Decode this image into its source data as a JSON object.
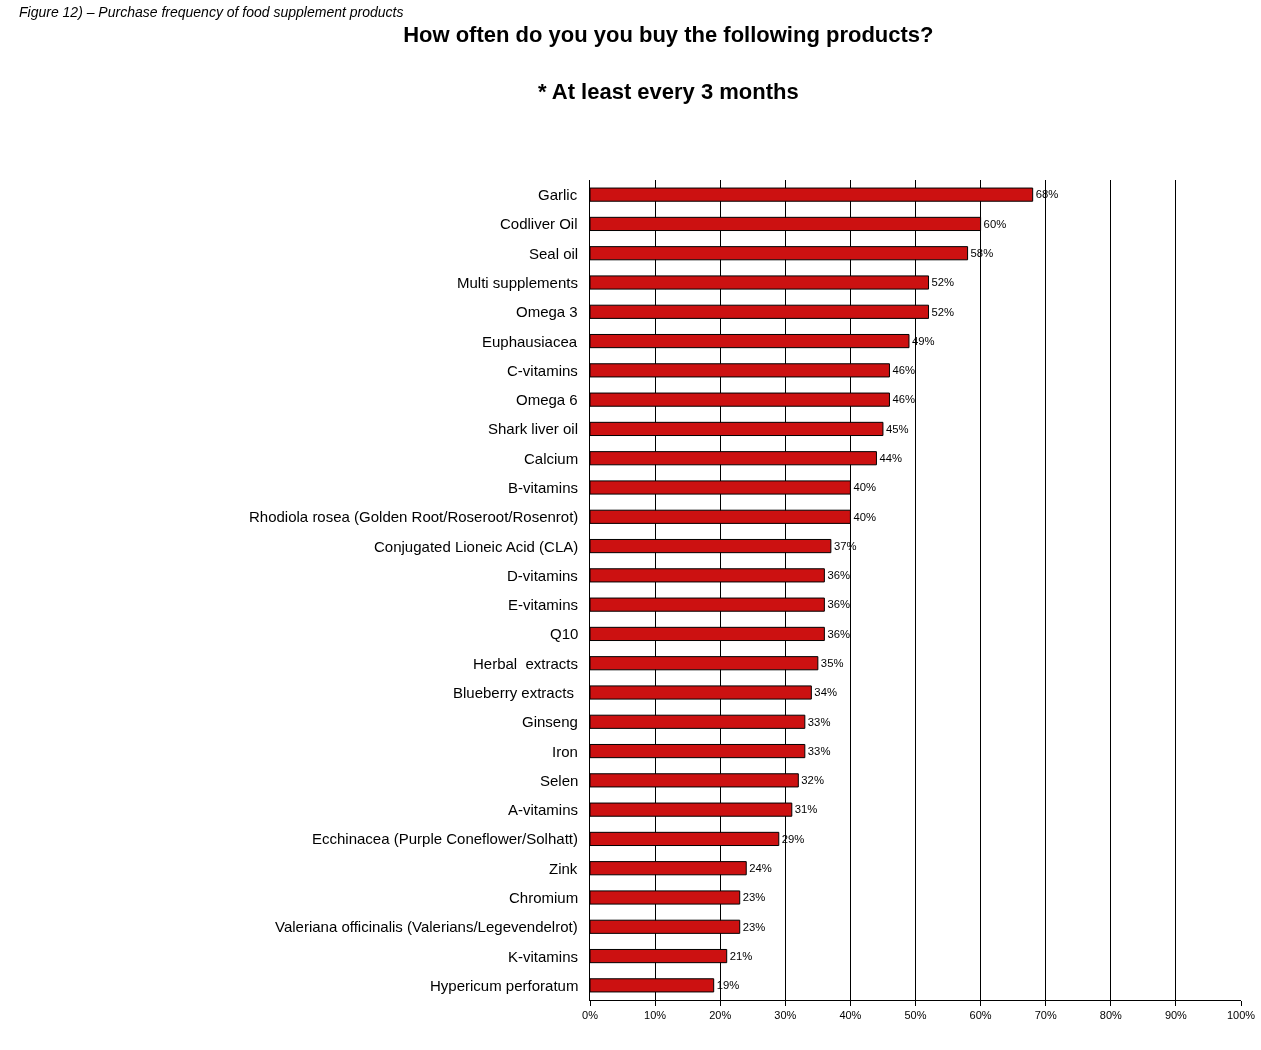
{
  "chart_data": {
    "type": "bar",
    "orientation": "horizontal",
    "title": "How often do you you buy the following products?",
    "subtitle": "* At least every 3 months",
    "annotations": [
      "Figure 12) – Purchase frequency of food supplement products"
    ],
    "categories": [
      "Garlic",
      "Codliver Oil",
      "Seal oil",
      "Multi supplements",
      "Omega 3",
      "Euphausiacea",
      "C-vitamins",
      "Omega 6",
      "Shark liver oil",
      "Calcium",
      "B-vitamins",
      "Rhodiola rosea (Golden Root/Roseroot/Rosenrot)",
      "Conjugated Lioneic Acid (CLA)",
      "D-vitamins",
      "E-vitamins",
      "Q10",
      "Herbal  extracts",
      "Blueberry extracts ",
      "Ginseng",
      "Iron",
      "Selen",
      "A-vitamins",
      "Ecchinacea (Purple Coneflower/Solhatt)",
      "Zink",
      "Chromium",
      "Valeriana officinalis (Valerians/Legevendelrot)",
      "K-vitamins",
      "Hypericum perforatum"
    ],
    "values": [
      68,
      60,
      58,
      52,
      52,
      49,
      46,
      46,
      45,
      44,
      40,
      40,
      37,
      36,
      36,
      36,
      35,
      34,
      33,
      33,
      32,
      31,
      29,
      24,
      23,
      23,
      21,
      19
    ],
    "value_labels": [
      "68%",
      "60%",
      "58%",
      "52%",
      "52%",
      "49%",
      "46%",
      "46%",
      "45%",
      "44%",
      "40%",
      "40%",
      "37%",
      "36%",
      "36%",
      "36%",
      "35%",
      "34%",
      "33%",
      "33%",
      "32%",
      "31%",
      "29%",
      "24%",
      "23%",
      "23%",
      "21%",
      "19%"
    ],
    "color": "#cc1111",
    "xlim": [
      0,
      100
    ],
    "xticks": [
      {
        "value": 0,
        "label": "0%"
      },
      {
        "value": 10,
        "label": "10%"
      },
      {
        "value": 20,
        "label": "20%"
      },
      {
        "value": 30,
        "label": "30%"
      },
      {
        "value": 40,
        "label": "40%"
      },
      {
        "value": 50,
        "label": "50%"
      },
      {
        "value": 60,
        "label": "60%"
      },
      {
        "value": 70,
        "label": "70%"
      },
      {
        "value": 80,
        "label": "80%"
      },
      {
        "value": 90,
        "label": "90%"
      },
      {
        "value": 100,
        "label": "100%"
      }
    ],
    "grid": "x"
  }
}
